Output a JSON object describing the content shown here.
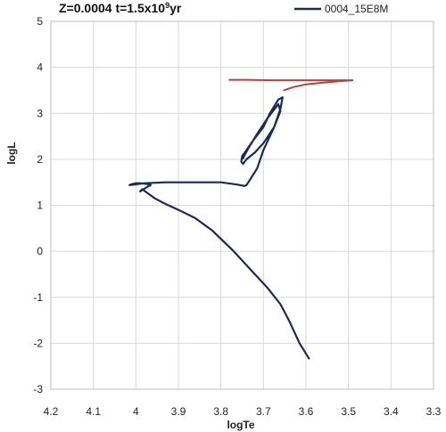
{
  "chart_data": {
    "type": "line",
    "title_main": "Z=0.0004 t=1.5x10",
    "title_exp": "9",
    "title_suffix": "yr",
    "xlabel": "logTe",
    "ylabel": "logL",
    "xlim": [
      4.2,
      3.3
    ],
    "ylim": [
      -3,
      5
    ],
    "x_reversed": true,
    "x_ticks": [
      "4.2",
      "4.1",
      "4",
      "3.9",
      "3.8",
      "3.7",
      "3.6",
      "3.5",
      "3.4",
      "3.3"
    ],
    "y_ticks": [
      "5",
      "4",
      "3",
      "2",
      "1",
      "0",
      "-1",
      "-2",
      "-3"
    ],
    "grid": true,
    "legend_position": "top-right",
    "series": [
      {
        "name": "0004_15E8M",
        "color": "#1a2a5e",
        "x": [
          3.593,
          3.605,
          3.615,
          3.64,
          3.66,
          3.69,
          3.73,
          3.77,
          3.82,
          3.86,
          3.895,
          3.935,
          3.955,
          3.975,
          3.985,
          3.99,
          3.97,
          3.965,
          3.97,
          3.99,
          4.0,
          4.01,
          4.015,
          4.005,
          3.98,
          3.93,
          3.86,
          3.8,
          3.76,
          3.745,
          3.74,
          3.73,
          3.715,
          3.7,
          3.675,
          3.66,
          3.655,
          3.665,
          3.685,
          3.7,
          3.725,
          3.74,
          3.75,
          3.752,
          3.748,
          3.74,
          3.72,
          3.7,
          3.675,
          3.66,
          3.665,
          3.69,
          3.715,
          3.735,
          3.745,
          3.748
        ],
        "y": [
          -2.33,
          -2.15,
          -2.0,
          -1.5,
          -1.15,
          -0.8,
          -0.4,
          0.0,
          0.45,
          0.72,
          0.88,
          1.05,
          1.15,
          1.28,
          1.35,
          1.3,
          1.42,
          1.44,
          1.46,
          1.48,
          1.48,
          1.46,
          1.44,
          1.45,
          1.48,
          1.5,
          1.5,
          1.5,
          1.45,
          1.42,
          1.44,
          1.58,
          1.8,
          2.2,
          2.7,
          3.1,
          3.35,
          3.3,
          3.0,
          2.7,
          2.4,
          2.2,
          2.07,
          1.95,
          1.9,
          2.0,
          2.15,
          2.35,
          2.7,
          3.05,
          3.2,
          2.9,
          2.55,
          2.25,
          2.08,
          2.02
        ]
      },
      {
        "name": "",
        "color": "#b5443f",
        "x": [
          3.652,
          3.63,
          3.6,
          3.56,
          3.52,
          3.49,
          3.53,
          3.6,
          3.68,
          3.74,
          3.78
        ],
        "y": [
          3.5,
          3.57,
          3.63,
          3.67,
          3.7,
          3.72,
          3.72,
          3.72,
          3.72,
          3.73,
          3.73
        ]
      }
    ]
  }
}
